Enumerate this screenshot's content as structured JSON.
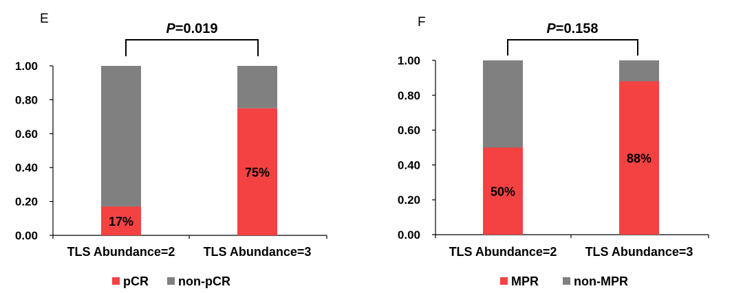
{
  "chart_data": [
    {
      "panel": "E",
      "type": "bar",
      "stacked": true,
      "categories": [
        "TLS Abundance=2",
        "TLS Abundance=3"
      ],
      "series": [
        {
          "name": "pCR",
          "values": [
            0.17,
            0.75
          ],
          "labels": [
            "17%",
            "75%"
          ],
          "color": "#F44242"
        },
        {
          "name": "non-pCR",
          "values": [
            0.83,
            0.25
          ],
          "color": "#808080"
        }
      ],
      "ylim": [
        0,
        1
      ],
      "yticks": [
        "0.00",
        "0.20",
        "0.40",
        "0.60",
        "0.80",
        "1.00"
      ],
      "ytick_values": [
        0,
        0.2,
        0.4,
        0.6,
        0.8,
        1.0
      ],
      "p_value": {
        "italic": "P",
        "rest": "=0.019"
      },
      "legend_position": "bottom"
    },
    {
      "panel": "F",
      "type": "bar",
      "stacked": true,
      "categories": [
        "TLS Abundance=2",
        "TLS Abundance=3"
      ],
      "series": [
        {
          "name": "MPR",
          "values": [
            0.5,
            0.88
          ],
          "labels": [
            "50%",
            "88%"
          ],
          "color": "#F44242"
        },
        {
          "name": "non-MPR",
          "values": [
            0.5,
            0.12
          ],
          "color": "#808080"
        }
      ],
      "ylim": [
        0,
        1
      ],
      "yticks": [
        "0.00",
        "0.20",
        "0.40",
        "0.60",
        "0.80",
        "1.00"
      ],
      "ytick_values": [
        0,
        0.2,
        0.4,
        0.6,
        0.8,
        1.0
      ],
      "p_value": {
        "italic": "P",
        "rest": "=0.158"
      },
      "legend_position": "bottom"
    }
  ]
}
